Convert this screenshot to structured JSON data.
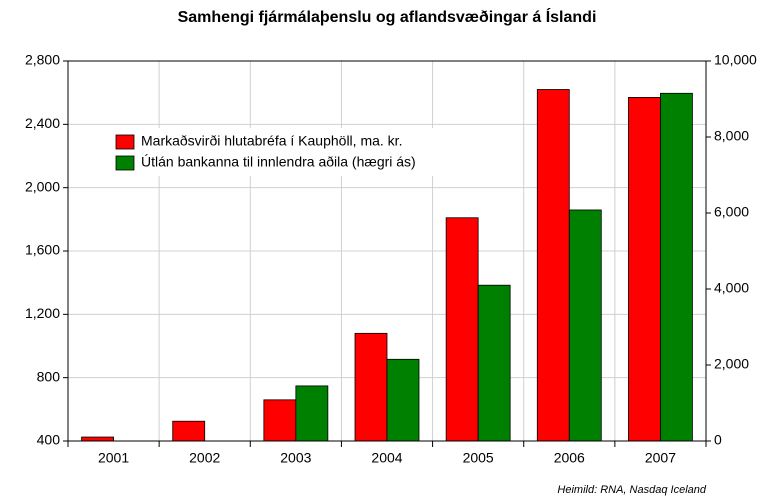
{
  "chart_data": {
    "type": "bar",
    "title": "Samhengi fjármálaþenslu og aflandsvæðingar á Íslandi",
    "source": "Heimild: RNA, Nasdaq Iceland",
    "categories": [
      "2001",
      "2002",
      "2003",
      "2004",
      "2005",
      "2006",
      "2007"
    ],
    "series": [
      {
        "name": "Markaðsvirði hlutabréfa í Kauphöll, ma. kr.",
        "color": "#ff0000",
        "values": [
          425,
          525,
          660,
          1080,
          1810,
          2620,
          2570
        ]
      },
      {
        "name": "Útlán bankanna til innlendra aðila (hægri ás)",
        "color": "#008000",
        "axis": "y2",
        "values": [
          null,
          null,
          1450,
          2150,
          4100,
          6080,
          9150
        ]
      }
    ],
    "ylim": [
      400,
      2800
    ],
    "yticks": [
      400,
      800,
      {
        "value": 1200,
        "label": "1,200"
      },
      {
        "value": 1600,
        "label": "1,600"
      },
      {
        "value": 2000,
        "label": "2,000"
      },
      {
        "value": 2400,
        "label": "2,400"
      },
      {
        "value": 2800,
        "label": "2,800"
      }
    ],
    "y2lim": [
      0,
      10000
    ],
    "y2ticks": [
      0,
      {
        "value": 2000,
        "label": "2,000"
      },
      {
        "value": 4000,
        "label": "4,000"
      },
      {
        "value": 6000,
        "label": "6,000"
      },
      {
        "value": 8000,
        "label": "8,000"
      },
      {
        "value": 10000,
        "label": "10,000"
      }
    ],
    "grid": true,
    "legend": "upper left"
  }
}
